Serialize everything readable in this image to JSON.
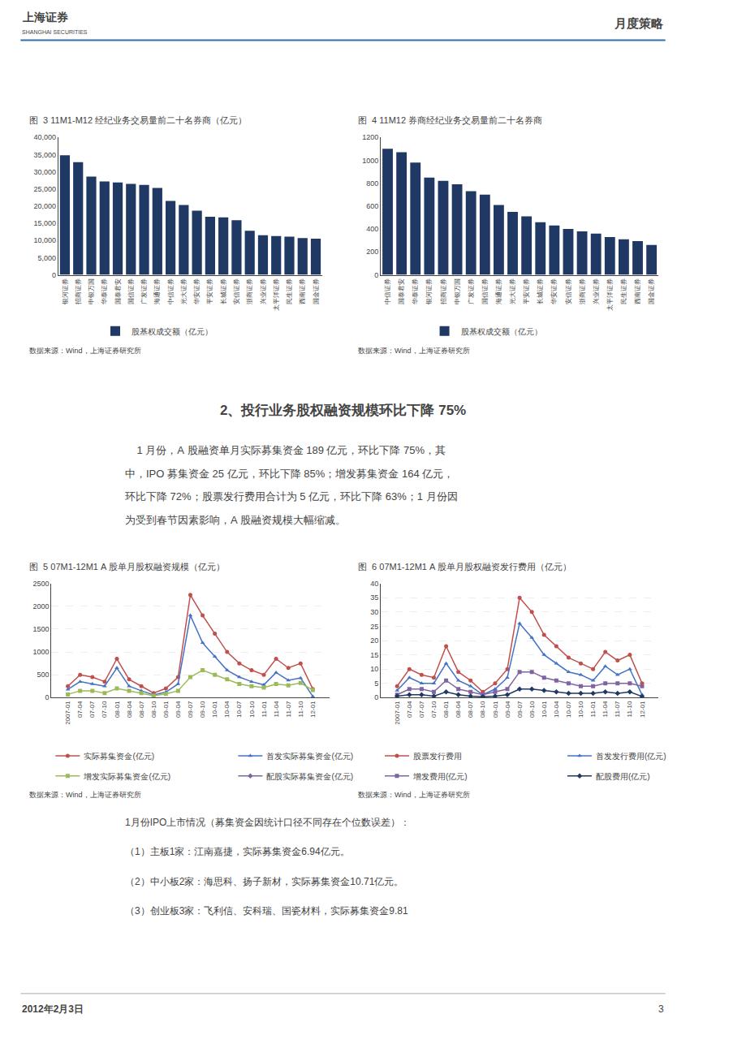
{
  "annotations": {
    "header": [
      "上海证券",
      "SHANGHAI SECURITIES",
      "月度策略"
    ],
    "section_title": "2、投行业务股权融资规模环比下降 75%",
    "body": [
      "    1 月份，A 股融资单月实际募集资金 189 亿元，环比下降 75%，其",
      "中，IPO 募集资金 25 亿元，环比下降 85%；增发募集资金 164 亿元，",
      "环比下降 72%；股票发行费用合计为 5 亿元，环比下降 63%；1 月份因",
      "为受到春节因素影响，A 股融资规模大幅缩减。"
    ],
    "notes": [
      "1月份IPO上市情况（募集资金因统计口径不同存在个位数误差）：",
      "（1）主板1家：江南嘉捷，实际募集资金6.94亿元。",
      "（2）中小板2家：海思科、扬子新材，实际募集资金10.71亿元。",
      "（3）创业板3家：飞利信、安科瑞、国瓷材料，实际募集资金9.81"
    ],
    "footer": [
      "2012年2月3日",
      "3"
    ]
  },
  "chart_data": [
    {
      "type": "bar",
      "title": "图  3 11M1-M12 经纪业务交易量前二十名券商（亿元）",
      "categories": [
        "银河证券",
        "招商证券",
        "申银万国",
        "华泰证券",
        "国泰君安",
        "国信证券",
        "广发证券",
        "海通证券",
        "中信证券",
        "光大证券",
        "华安证券",
        "平安证券",
        "长城证券",
        "安信证券",
        "浙商证券",
        "兴业证券",
        "太平洋证券",
        "民生证券",
        "西南证券",
        "国金证券"
      ],
      "series": [
        {
          "name": "股基权成交额（亿元）",
          "color": "#1f3864",
          "values": [
            34800,
            32800,
            28600,
            27200,
            26900,
            26500,
            26200,
            25300,
            21500,
            20300,
            18700,
            16900,
            16700,
            15900,
            12800,
            11500,
            11300,
            11100,
            10700,
            10500
          ]
        }
      ],
      "ylim": [
        0,
        40000
      ],
      "yticks": [
        0,
        {
          "value": 5000,
          "label": "5,000"
        },
        {
          "value": 10000,
          "label": "10,000"
        },
        {
          "value": 15000,
          "label": "15,000"
        },
        {
          "value": 20000,
          "label": "20,000"
        },
        {
          "value": 25000,
          "label": "25,000"
        },
        {
          "value": 30000,
          "label": "30,000"
        },
        {
          "value": 35000,
          "label": "35,000"
        },
        {
          "value": 40000,
          "label": "40,000"
        }
      ],
      "grid": false,
      "legend": "bottom",
      "annotations": [
        "数据来源：Wind，上海证券研究所"
      ]
    },
    {
      "type": "bar",
      "title": "图  4 11M12 券商经纪业务交易量前二十名券商",
      "categories": [
        "中信证券",
        "国泰君安",
        "华泰证券",
        "银河证券",
        "招商证券",
        "申银万国",
        "广发证券",
        "国信证券",
        "海通证券",
        "光大证券",
        "平安证券",
        "长城证券",
        "华安证券",
        "安信证券",
        "浙商证券",
        "兴业证券",
        "太平洋证券",
        "民生证券",
        "西南证券",
        "国金证券"
      ],
      "series": [
        {
          "name": "股基权成交额（亿元）",
          "color": "#1f3864",
          "values": [
            1100,
            1070,
            980,
            850,
            820,
            790,
            730,
            700,
            610,
            550,
            510,
            460,
            430,
            400,
            380,
            360,
            330,
            310,
            295,
            260
          ]
        }
      ],
      "ylim": [
        0,
        1200
      ],
      "yticks": [
        0,
        200,
        400,
        600,
        800,
        1000,
        1200
      ],
      "grid": false,
      "legend": "bottom",
      "annotations": [
        "数据来源：Wind，上海证券研究所"
      ]
    },
    {
      "type": "line",
      "title": "图  5 07M1-12M1 A 股单月股权融资规模（亿元）",
      "categories": [
        "2007-01",
        "07-04",
        "07-07",
        "07-10",
        "08-01",
        "08-04",
        "08-07",
        "08-10",
        "09-01",
        "09-04",
        "09-07",
        "09-10",
        "10-01",
        "10-04",
        "10-07",
        "10-10",
        "11-01",
        "11-04",
        "11-07",
        "11-10",
        "12-01"
      ],
      "series": [
        {
          "name": "实际募集资金(亿元)",
          "color": "#c0504d",
          "marker": "circle",
          "values": [
            250,
            500,
            450,
            350,
            850,
            400,
            250,
            100,
            200,
            450,
            2250,
            1800,
            1400,
            1000,
            750,
            600,
            500,
            850,
            650,
            750,
            189
          ]
        },
        {
          "name": "首发实际募集资金(亿元)",
          "color": "#4472c4",
          "marker": "triangle-up",
          "values": [
            180,
            350,
            300,
            250,
            650,
            250,
            150,
            60,
            120,
            300,
            1800,
            1200,
            900,
            600,
            450,
            350,
            280,
            550,
            380,
            430,
            25
          ]
        },
        {
          "name": "增发实际募集资金(亿元)",
          "color": "#9bbb59",
          "marker": "square",
          "values": [
            70,
            150,
            150,
            100,
            200,
            150,
            100,
            40,
            80,
            150,
            450,
            600,
            500,
            400,
            300,
            250,
            220,
            300,
            270,
            320,
            164
          ]
        },
        {
          "name": "配股实际募集资金(亿元)",
          "color": "#8064a2",
          "marker": "diamond",
          "values": [
            null,
            null,
            null,
            null,
            null,
            null,
            null,
            null,
            null,
            null,
            null,
            null,
            null,
            null,
            null,
            null,
            null,
            null,
            null,
            null,
            null
          ]
        }
      ],
      "ylim": [
        0,
        2500
      ],
      "yticks": [
        0,
        500,
        1000,
        1500,
        2000,
        2500
      ],
      "grid": true,
      "legend": "bottom",
      "annotations": [
        "数据来源：Wind，上海证券研究所"
      ]
    },
    {
      "type": "line",
      "title": "图  6 07M1-12M1 A 股单月股权融资发行费用（亿元）",
      "categories": [
        "2007-01",
        "07-04",
        "07-07",
        "07-10",
        "08-01",
        "08-04",
        "08-07",
        "08-10",
        "09-01",
        "09-04",
        "09-07",
        "09-10",
        "10-01",
        "10-04",
        "10-07",
        "10-10",
        "11-01",
        "11-04",
        "11-07",
        "11-10",
        "12-01"
      ],
      "series": [
        {
          "name": "股票发行费用",
          "color": "#c0504d",
          "marker": "circle",
          "values": [
            4,
            10,
            8,
            7,
            18,
            9,
            6,
            2,
            5,
            10,
            35,
            30,
            22,
            18,
            14,
            12,
            10,
            16,
            13,
            15,
            5
          ]
        },
        {
          "name": "首发发行费用(亿元)",
          "color": "#4472c4",
          "marker": "triangle-up",
          "values": [
            2.5,
            7,
            5,
            5,
            12,
            6,
            4,
            1,
            3,
            7,
            26,
            21,
            15,
            12,
            9,
            8,
            6,
            11,
            8,
            10,
            1
          ]
        },
        {
          "name": "增发费用(亿元)",
          "color": "#8064a2",
          "marker": "square",
          "values": [
            1,
            3,
            3,
            2,
            6,
            3,
            2,
            1,
            2,
            3,
            9,
            9,
            7,
            6,
            5,
            4,
            4,
            5,
            5,
            5,
            4
          ]
        },
        {
          "name": "配股费用(亿元)",
          "color": "#1f3864",
          "marker": "diamond",
          "values": [
            0.5,
            1,
            1,
            0.5,
            2,
            1,
            0.5,
            0.3,
            0.5,
            1,
            3,
            3,
            2.5,
            2,
            1.5,
            1.5,
            1.5,
            2,
            1.5,
            2,
            0.4
          ]
        }
      ],
      "ylim": [
        0,
        40
      ],
      "yticks": [
        0,
        5,
        10,
        15,
        20,
        25,
        30,
        35,
        40
      ],
      "grid": true,
      "legend": "bottom",
      "annotations": [
        "数据来源：Wind，上海证券研究所"
      ]
    }
  ]
}
